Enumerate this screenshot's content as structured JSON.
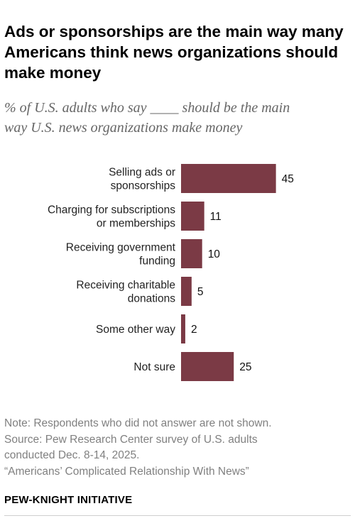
{
  "title": "Ads or sponsorships are the main way many Americans think news organizations should make money",
  "subtitle_line1": "% of U.S. adults who say ____ should be the main",
  "subtitle_line2": "way U.S. news organizations make money",
  "chart_data": {
    "type": "bar",
    "orientation": "horizontal",
    "categories": [
      [
        "Selling ads or",
        "sponsorships"
      ],
      [
        "Charging for subscriptions",
        "or memberships"
      ],
      [
        "Receiving government",
        "funding"
      ],
      [
        "Receiving charitable",
        "donations"
      ],
      [
        "Some other way"
      ],
      [
        "Not sure"
      ]
    ],
    "values": [
      45,
      11,
      10,
      5,
      2,
      25
    ],
    "xlim": [
      0,
      100
    ],
    "bar_color": "#7b3a45",
    "grid": false,
    "legend": "none"
  },
  "notes": {
    "note": "Note: Respondents who did not answer are not shown.",
    "source_line1": "Source: Pew Research Center survey of U.S. adults",
    "source_line2": "conducted Dec. 8-14, 2025.",
    "report": "“Americans’ Complicated Relationship With News”"
  },
  "brand": "PEW-KNIGHT INITIATIVE"
}
